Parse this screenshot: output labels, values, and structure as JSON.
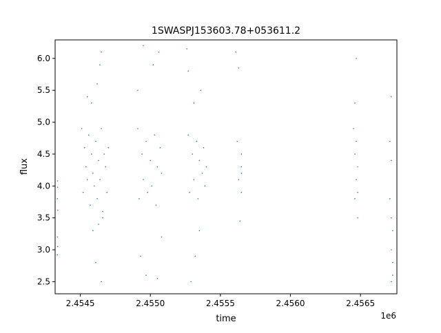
{
  "chart_data": {
    "type": "scatter",
    "title": "1SWASPJ153603.78+053611.2",
    "xlabel": "time",
    "ylabel": "flux",
    "x_offset_label": "1e6",
    "xlim": [
      2.45432,
      2.45676
    ],
    "ylim": [
      2.31,
      6.29
    ],
    "x_ticks": [
      2.4545,
      2.455,
      2.4555,
      2.456,
      2.4565
    ],
    "x_tick_labels": [
      "2.4545",
      "2.4550",
      "2.4555",
      "2.4560",
      "2.4565"
    ],
    "y_ticks": [
      2.5,
      3.0,
      3.5,
      4.0,
      4.5,
      5.0,
      5.5,
      6.0
    ],
    "y_tick_labels": [
      "2.5",
      "3.0",
      "3.5",
      "4.0",
      "4.5",
      "5.0",
      "5.5",
      "6.0"
    ],
    "grid": false,
    "marker_color": "#1f77b4",
    "series": [
      {
        "points": [
          [
            2.454337,
            4.08
          ],
          [
            2.454338,
            3.98
          ],
          [
            2.454336,
            3.8
          ],
          [
            2.454339,
            3.62
          ],
          [
            2.454337,
            3.2
          ],
          [
            2.454338,
            3.05
          ],
          [
            2.454336,
            2.92
          ],
          [
            2.45451,
            4.9
          ],
          [
            2.45452,
            3.9
          ],
          [
            2.45453,
            4.6
          ],
          [
            2.45454,
            4.3
          ],
          [
            2.45455,
            4.1
          ],
          [
            2.45456,
            4.8
          ],
          [
            2.45457,
            3.7
          ],
          [
            2.45458,
            4.5
          ],
          [
            2.45459,
            4.2
          ],
          [
            2.4546,
            4.0
          ],
          [
            2.45461,
            4.7
          ],
          [
            2.45462,
            3.8
          ],
          [
            2.45463,
            4.4
          ],
          [
            2.45464,
            4.1
          ],
          [
            2.45465,
            4.9
          ],
          [
            2.45466,
            3.6
          ],
          [
            2.45467,
            4.5
          ],
          [
            2.45468,
            4.3
          ],
          [
            2.45469,
            3.9
          ],
          [
            2.4547,
            4.6
          ],
          [
            2.45455,
            5.4
          ],
          [
            2.45458,
            5.3
          ],
          [
            2.45462,
            5.6
          ],
          [
            2.45464,
            5.9
          ],
          [
            2.45465,
            6.1
          ],
          [
            2.45463,
            3.4
          ],
          [
            2.45459,
            3.3
          ],
          [
            2.45466,
            3.5
          ],
          [
            2.45461,
            2.8
          ],
          [
            2.45465,
            2.5
          ],
          [
            2.45491,
            4.9
          ],
          [
            2.45492,
            3.8
          ],
          [
            2.45494,
            4.5
          ],
          [
            2.45495,
            4.1
          ],
          [
            2.45497,
            4.7
          ],
          [
            2.45498,
            3.9
          ],
          [
            2.455,
            4.4
          ],
          [
            2.45501,
            4.0
          ],
          [
            2.45503,
            4.8
          ],
          [
            2.45504,
            3.7
          ],
          [
            2.45505,
            4.3
          ],
          [
            2.45507,
            4.6
          ],
          [
            2.45508,
            4.2
          ],
          [
            2.45491,
            5.5
          ],
          [
            2.45495,
            6.2
          ],
          [
            2.45502,
            5.9
          ],
          [
            2.45506,
            6.1
          ],
          [
            2.45493,
            2.9
          ],
          [
            2.45497,
            2.6
          ],
          [
            2.45505,
            2.55
          ],
          [
            2.45508,
            3.2
          ],
          [
            2.45527,
            4.8
          ],
          [
            2.45528,
            3.9
          ],
          [
            2.4553,
            4.5
          ],
          [
            2.45531,
            4.1
          ],
          [
            2.45533,
            4.7
          ],
          [
            2.45534,
            3.8
          ],
          [
            2.45535,
            4.4
          ],
          [
            2.45537,
            4.2
          ],
          [
            2.45538,
            4.6
          ],
          [
            2.45539,
            4.0
          ],
          [
            2.4554,
            4.3
          ],
          [
            2.45526,
            6.15
          ],
          [
            2.45527,
            5.8
          ],
          [
            2.45531,
            5.3
          ],
          [
            2.45536,
            5.5
          ],
          [
            2.45529,
            2.5
          ],
          [
            2.45532,
            2.9
          ],
          [
            2.45535,
            3.3
          ],
          [
            2.45561,
            6.1
          ],
          [
            2.45563,
            5.85
          ],
          [
            2.45565,
            4.3
          ],
          [
            2.45565,
            4.2
          ],
          [
            2.45565,
            4.5
          ],
          [
            2.45565,
            3.9
          ],
          [
            2.45563,
            4.1
          ],
          [
            2.45564,
            3.45
          ],
          [
            2.45562,
            4.7
          ],
          [
            2.45645,
            4.9
          ],
          [
            2.45646,
            3.8
          ],
          [
            2.45646,
            4.5
          ],
          [
            2.45647,
            4.1
          ],
          [
            2.45647,
            4.7
          ],
          [
            2.45648,
            3.9
          ],
          [
            2.45648,
            4.3
          ],
          [
            2.45646,
            5.3
          ],
          [
            2.45647,
            6.0
          ],
          [
            2.45648,
            3.5
          ],
          [
            2.45672,
            5.4
          ],
          [
            2.45671,
            4.7
          ],
          [
            2.45672,
            4.4
          ],
          [
            2.45671,
            3.8
          ],
          [
            2.45672,
            3.5
          ],
          [
            2.45673,
            3.3
          ],
          [
            2.45672,
            3.0
          ],
          [
            2.45673,
            2.8
          ],
          [
            2.45673,
            2.6
          ],
          [
            2.45672,
            2.5
          ]
        ]
      }
    ]
  }
}
